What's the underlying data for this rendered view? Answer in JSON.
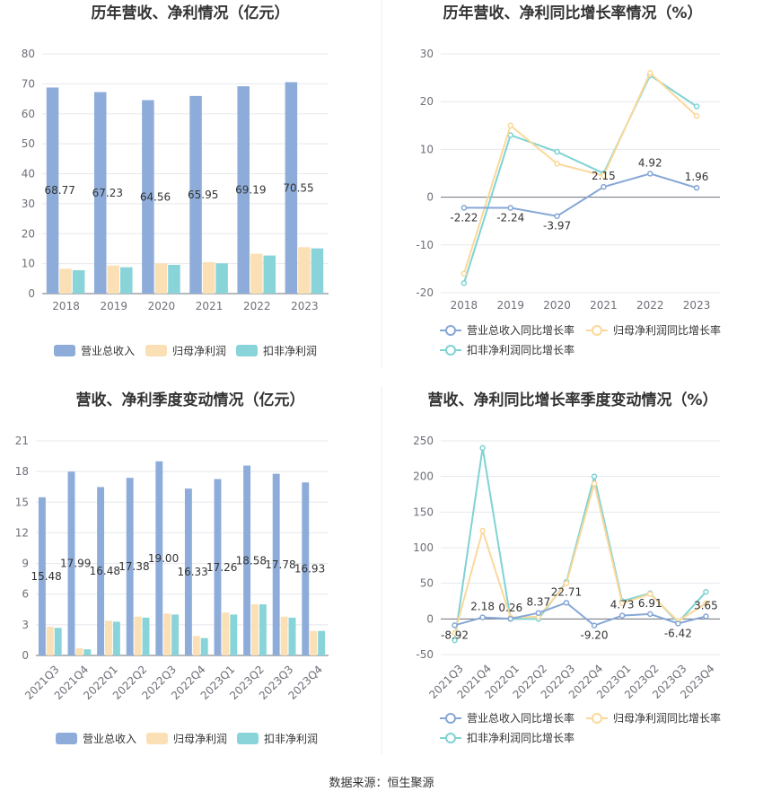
{
  "source": "数据来源：恒生聚源",
  "chart_data": [
    {
      "type": "bar",
      "title": "历年营收、净利情况（亿元）",
      "categories": [
        "2018",
        "2019",
        "2020",
        "2021",
        "2022",
        "2023"
      ],
      "ylim": [
        0,
        80
      ],
      "yticks": [
        0,
        10,
        20,
        30,
        40,
        50,
        60,
        70,
        80
      ],
      "grid": true,
      "legend_position": "bottom",
      "series": [
        {
          "name": "营业总收入",
          "color": "#8eacd9",
          "values": [
            68.77,
            67.23,
            64.56,
            65.95,
            69.19,
            70.55
          ],
          "labels": [
            "68.77",
            "67.23",
            "64.56",
            "65.95",
            "69.19",
            "70.55"
          ]
        },
        {
          "name": "归母净利润",
          "color": "#fbe0b5",
          "values": [
            8.3,
            9.4,
            10.1,
            10.5,
            13.3,
            15.5
          ]
        },
        {
          "name": "扣非净利润",
          "color": "#88d4d8",
          "values": [
            7.8,
            8.8,
            9.6,
            10.1,
            12.7,
            15.1
          ]
        }
      ]
    },
    {
      "type": "line",
      "title": "历年营收、净利同比增长率情况（%）",
      "categories": [
        "2018",
        "2019",
        "2020",
        "2021",
        "2022",
        "2023"
      ],
      "ylim": [
        -20,
        30
      ],
      "yticks": [
        -20,
        -10,
        0,
        10,
        20,
        30
      ],
      "grid": true,
      "legend_position": "bottom",
      "series": [
        {
          "name": "营业总收入同比增长率",
          "color": "#86a7d6",
          "values": [
            -2.22,
            -2.24,
            -3.97,
            2.15,
            4.92,
            1.96
          ],
          "labels": [
            "-2.22",
            "-2.24",
            "-3.97",
            "2.15",
            "4.92",
            "1.96"
          ]
        },
        {
          "name": "归母净利润同比增长率",
          "color": "#fbd89a",
          "values": [
            -16,
            15,
            7,
            4.5,
            26,
            17
          ]
        },
        {
          "name": "扣非净利润同比增长率",
          "color": "#7fd3d3",
          "values": [
            -18,
            13,
            9.5,
            5,
            25.5,
            19
          ]
        }
      ]
    },
    {
      "type": "bar",
      "title": "营收、净利季度变动情况（亿元）",
      "categories": [
        "2021Q3",
        "2021Q4",
        "2022Q1",
        "2022Q2",
        "2022Q3",
        "2022Q4",
        "2023Q1",
        "2023Q2",
        "2023Q3",
        "2023Q4"
      ],
      "ylim": [
        0,
        21
      ],
      "yticks": [
        0,
        3,
        6,
        9,
        12,
        15,
        18,
        21
      ],
      "grid": true,
      "legend_position": "bottom",
      "series": [
        {
          "name": "营业总收入",
          "color": "#8eacd9",
          "values": [
            15.48,
            17.99,
            16.48,
            17.38,
            19.0,
            16.33,
            17.26,
            18.58,
            17.78,
            16.93
          ],
          "labels": [
            "15.48",
            "17.99",
            "16.48",
            "17.38",
            "19.00",
            "16.33",
            "17.26",
            "18.58",
            "17.78",
            "16.93"
          ]
        },
        {
          "name": "归母净利润",
          "color": "#fbe0b5",
          "values": [
            2.8,
            0.7,
            3.4,
            3.8,
            4.1,
            1.9,
            4.2,
            5.0,
            3.8,
            2.4
          ]
        },
        {
          "name": "扣非净利润",
          "color": "#88d4d8",
          "values": [
            2.7,
            0.6,
            3.3,
            3.7,
            4.0,
            1.7,
            4.0,
            5.0,
            3.7,
            2.4
          ]
        }
      ]
    },
    {
      "type": "line",
      "title": "营收、净利同比增长率季度变动情况（%）",
      "categories": [
        "2021Q3",
        "2021Q4",
        "2022Q1",
        "2022Q2",
        "2022Q3",
        "2022Q4",
        "2023Q1",
        "2023Q2",
        "2023Q3",
        "2023Q4"
      ],
      "ylim": [
        -50,
        250
      ],
      "yticks": [
        -50,
        0,
        50,
        100,
        150,
        200,
        250
      ],
      "grid": true,
      "legend_position": "bottom",
      "series": [
        {
          "name": "营业总收入同比增长率",
          "color": "#86a7d6",
          "values": [
            -8.92,
            2.18,
            0.26,
            8.37,
            22.71,
            -9.2,
            4.73,
            6.91,
            -6.42,
            3.65
          ],
          "labels": [
            "-8.92",
            "2.18",
            "0.26",
            "8.37",
            "22.71",
            "-9.20",
            "4.73",
            "6.91",
            "-6.42",
            "3.65"
          ]
        },
        {
          "name": "归母净利润同比增长率",
          "color": "#fbd89a",
          "values": [
            -20,
            124,
            2,
            3,
            50,
            190,
            22,
            35,
            -3,
            22
          ]
        },
        {
          "name": "扣非净利润同比增长率",
          "color": "#7fd3d3",
          "values": [
            -30,
            240,
            0,
            0,
            52,
            200,
            25,
            36,
            -5,
            38
          ]
        }
      ]
    }
  ]
}
